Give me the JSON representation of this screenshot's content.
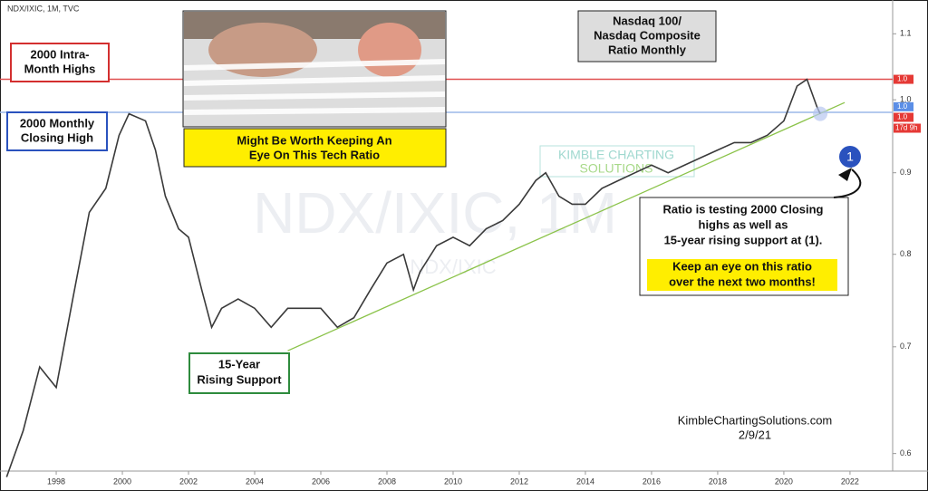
{
  "chart_data": {
    "type": "line",
    "header": "NDX/IXIC, 1M, TVC",
    "watermark": "NDX/IXIC, 1M",
    "watermark_sub": "NDX/IXIC",
    "logo": [
      "KIMBLE CHARTING",
      "SOLUTIONS"
    ],
    "log_scale": true,
    "xlim": [
      1996.3,
      2023.29
    ],
    "ylim": [
      0.585,
      1.155
    ],
    "xticks": [
      1998,
      2000,
      2002,
      2004,
      2006,
      2008,
      2010,
      2012,
      2014,
      2016,
      2018,
      2020,
      2022
    ],
    "yticks": [
      0.6,
      0.7,
      0.8,
      0.9,
      {
        "value": 1,
        "label": "1.0"
      },
      1.1
    ],
    "series": [
      {
        "name": "NDX/IXIC",
        "color": "#3a3a3a",
        "x": [
          1996.5,
          1997.0,
          1997.5,
          1998.0,
          1998.5,
          1999.0,
          1999.5,
          1999.9,
          2000.2,
          2000.7,
          2001.0,
          2001.3,
          2001.7,
          2002.0,
          2002.4,
          2002.7,
          2003.0,
          2003.5,
          2004.0,
          2004.5,
          2005.0,
          2005.5,
          2006.0,
          2006.5,
          2007.0,
          2007.5,
          2008.0,
          2008.5,
          2008.8,
          2009.0,
          2009.5,
          2010.0,
          2010.5,
          2011.0,
          2011.5,
          2012.0,
          2012.5,
          2012.8,
          2013.2,
          2013.6,
          2014.0,
          2014.5,
          2015.0,
          2015.5,
          2016.0,
          2016.5,
          2017.0,
          2017.5,
          2018.0,
          2018.5,
          2019.0,
          2019.5,
          2020.0,
          2020.4,
          2020.7,
          2021.0,
          2021.1
        ],
        "values": [
          0.58,
          0.62,
          0.68,
          0.66,
          0.75,
          0.85,
          0.88,
          0.95,
          0.98,
          0.97,
          0.93,
          0.87,
          0.83,
          0.82,
          0.76,
          0.72,
          0.74,
          0.75,
          0.74,
          0.72,
          0.74,
          0.74,
          0.74,
          0.72,
          0.73,
          0.76,
          0.79,
          0.8,
          0.76,
          0.78,
          0.81,
          0.82,
          0.81,
          0.83,
          0.84,
          0.86,
          0.89,
          0.9,
          0.87,
          0.86,
          0.86,
          0.88,
          0.89,
          0.9,
          0.91,
          0.9,
          0.91,
          0.92,
          0.93,
          0.94,
          0.94,
          0.95,
          0.97,
          1.02,
          1.03,
          0.99,
          0.98
        ]
      }
    ],
    "levels": [
      {
        "value": 1.03,
        "color": "#e05050"
      },
      {
        "value": 0.982,
        "color": "#9bb8e8"
      }
    ],
    "trendline": {
      "x": [
        2005.0,
        2021.84
      ],
      "values": [
        0.696,
        0.996
      ],
      "color": "#8bc34a"
    },
    "price_labels": [
      {
        "value": 1.03,
        "label": "1.0",
        "color": "#e53935"
      },
      {
        "value": 0.99,
        "label": "1.0",
        "color": "#5b8ee6"
      },
      {
        "value": 0.975,
        "label": "1.0",
        "color": "#e53935"
      }
    ],
    "countdown": "17d 9h",
    "annotations": {
      "intra_month": [
        "2000 Intra-",
        "Month Highs"
      ],
      "monthly_close": [
        "2000 Monthly",
        "Closing High"
      ],
      "worth_keeping": [
        "Might Be Worth Keeping An",
        "Eye On This Tech Ratio"
      ],
      "title": [
        "Nasdaq 100/",
        "Nasdaq Composite",
        "Ratio Monthly"
      ],
      "testing": [
        "Ratio is testing 2000 Closing",
        "highs as well as",
        "15-year rising support at (1)."
      ],
      "keep_eye": [
        "Keep an eye on this ratio",
        "over the next two months!"
      ],
      "support": [
        "15-Year",
        "Rising Support"
      ],
      "marker": "1",
      "site": "KimbleChartingSolutions.com",
      "date": "2/9/21"
    }
  }
}
